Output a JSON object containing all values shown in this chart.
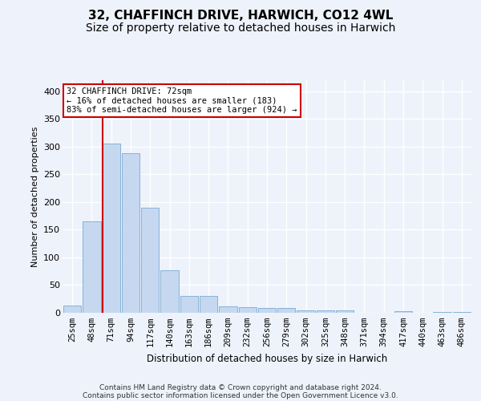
{
  "title_line1": "32, CHAFFINCH DRIVE, HARWICH, CO12 4WL",
  "title_line2": "Size of property relative to detached houses in Harwich",
  "xlabel": "Distribution of detached houses by size in Harwich",
  "ylabel": "Number of detached properties",
  "categories": [
    "25sqm",
    "48sqm",
    "71sqm",
    "94sqm",
    "117sqm",
    "140sqm",
    "163sqm",
    "186sqm",
    "209sqm",
    "232sqm",
    "256sqm",
    "279sqm",
    "302sqm",
    "325sqm",
    "348sqm",
    "371sqm",
    "394sqm",
    "417sqm",
    "440sqm",
    "463sqm",
    "486sqm"
  ],
  "values": [
    13,
    165,
    305,
    288,
    190,
    77,
    31,
    31,
    11,
    10,
    8,
    9,
    5,
    5,
    4,
    0,
    0,
    3,
    0,
    2,
    2
  ],
  "bar_color": "#c5d8f0",
  "bar_edge_color": "#7aaad0",
  "red_line_index": 2,
  "annotation_line1": "32 CHAFFINCH DRIVE: 72sqm",
  "annotation_line2": "← 16% of detached houses are smaller (183)",
  "annotation_line3": "83% of semi-detached houses are larger (924) →",
  "annotation_box_facecolor": "#ffffff",
  "annotation_box_edgecolor": "#cc0000",
  "footer_line1": "Contains HM Land Registry data © Crown copyright and database right 2024.",
  "footer_line2": "Contains public sector information licensed under the Open Government Licence v3.0.",
  "ylim": [
    0,
    420
  ],
  "yticks": [
    0,
    50,
    100,
    150,
    200,
    250,
    300,
    350,
    400
  ],
  "background_color": "#eef2fb",
  "grid_color": "#ffffff",
  "title1_fontsize": 11,
  "title2_fontsize": 10,
  "tick_fontsize": 7.5,
  "ylabel_fontsize": 8,
  "xlabel_fontsize": 8.5,
  "footer_fontsize": 6.5,
  "annotation_fontsize": 7.5
}
